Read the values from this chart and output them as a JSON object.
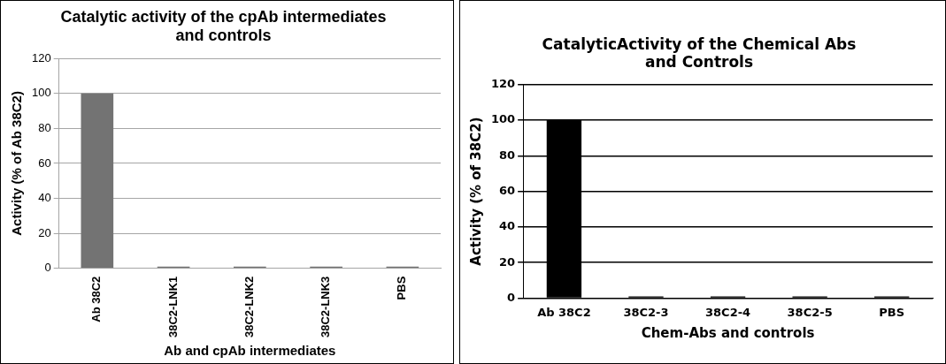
{
  "chart_data": [
    {
      "type": "bar",
      "title": "Catalytic activity of the cpAb intermediates and controls",
      "xlabel": "Ab and cpAb intermediates",
      "ylabel": "Activity (% of Ab 38C2)",
      "categories": [
        "Ab 38C2",
        "38C2-LNK1",
        "38C2-LNK2",
        "38C2-LNK3",
        "PBS"
      ],
      "values": [
        100,
        1,
        1,
        1,
        1
      ],
      "color": "#737373",
      "ylim": [
        0,
        120
      ],
      "yticks": [
        0,
        20,
        40,
        60,
        80,
        100,
        120
      ],
      "grid": "y"
    },
    {
      "type": "bar",
      "title": "CatalyticActivity of the Chemical Abs and Controls",
      "xlabel": "Chem-Abs and controls",
      "ylabel": "Activity (% of 38C2)",
      "categories": [
        "Ab 38C2",
        "38C2-3",
        "38C2-4",
        "38C2-5",
        "PBS"
      ],
      "values": [
        100,
        1,
        1,
        1,
        1
      ],
      "color": "#000000",
      "ylim": [
        0,
        120
      ],
      "yticks": [
        0,
        20,
        40,
        60,
        80,
        100,
        120
      ],
      "grid": "y"
    }
  ]
}
